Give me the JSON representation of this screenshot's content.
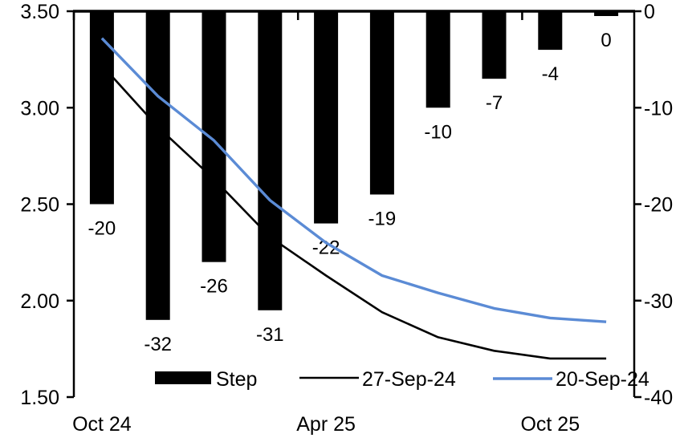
{
  "chart_data": {
    "type": "bar",
    "subtype": "combo-bar-line-dual-axis",
    "title": "",
    "n_slots": 10,
    "x_axis": {
      "tick_labels": [
        {
          "label": "Oct 24",
          "slot": 0
        },
        {
          "label": "Apr 25",
          "slot": 4
        },
        {
          "label": "Oct 25",
          "slot": 8
        }
      ]
    },
    "left_axis": {
      "range": [
        1.5,
        3.5
      ],
      "ticks": [
        {
          "label": "3.50",
          "value": 3.5
        },
        {
          "label": "3.00",
          "value": 3.0
        },
        {
          "label": "2.50",
          "value": 2.5
        },
        {
          "label": "2.00",
          "value": 2.0
        },
        {
          "label": "1.50",
          "value": 1.5
        }
      ]
    },
    "right_axis": {
      "range": [
        -40,
        0
      ],
      "ticks": [
        {
          "label": "0",
          "value": 0
        },
        {
          "label": "-10",
          "value": -10
        },
        {
          "label": "-20",
          "value": -20
        },
        {
          "label": "-30",
          "value": -30
        },
        {
          "label": "-40",
          "value": -40
        }
      ]
    },
    "series": [
      {
        "name": "Step",
        "type": "bar",
        "axis": "right",
        "color": "#000000",
        "values": [
          -20,
          -32,
          -26,
          -31,
          -22,
          -19,
          -10,
          -7,
          -4,
          0
        ],
        "labels": [
          "-20",
          "-32",
          "-26",
          "-31",
          "-22",
          "-19",
          "-10",
          "-7",
          "-4",
          "0"
        ]
      },
      {
        "name": "27-Sep-24",
        "type": "line",
        "axis": "left",
        "color": "#000000",
        "values": [
          3.22,
          2.9,
          2.63,
          2.33,
          2.13,
          1.94,
          1.81,
          1.74,
          1.7,
          1.7
        ]
      },
      {
        "name": "20-Sep-24",
        "type": "line",
        "axis": "left",
        "color": "#5B8BD5",
        "values": [
          3.36,
          3.06,
          2.83,
          2.52,
          2.3,
          2.13,
          2.04,
          1.96,
          1.91,
          1.89
        ]
      }
    ],
    "legend": {
      "position": "bottom",
      "items": [
        {
          "label": "Step",
          "swatch": "bar",
          "color": "#000000"
        },
        {
          "label": "27-Sep-24",
          "swatch": "line",
          "color": "#000000"
        },
        {
          "label": "20-Sep-24",
          "swatch": "line",
          "color": "#5B8BD5"
        }
      ]
    },
    "grid": false
  },
  "colors": {
    "background": "#ffffff",
    "bar_black": "#000000",
    "line_black": "#000000",
    "line_blue": "#5B8BD5"
  }
}
